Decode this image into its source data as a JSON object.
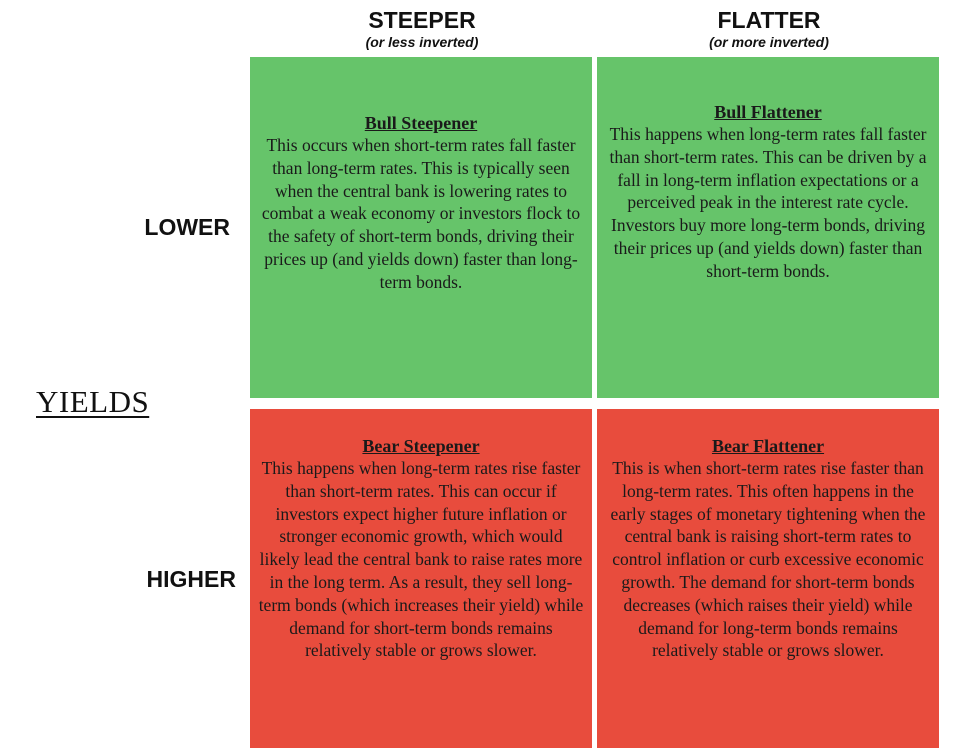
{
  "columns": [
    {
      "title": "STEEPER",
      "subtitle": "(or less inverted)"
    },
    {
      "title": "FLATTER",
      "subtitle": "(or more inverted)"
    }
  ],
  "rows": [
    {
      "label": "LOWER"
    },
    {
      "label": "HIGHER"
    }
  ],
  "axis_label": "YIELDS",
  "cells": {
    "bull_steepener": {
      "title": "Bull Steepener",
      "body": "This occurs when short-term rates fall faster than long-term rates. This is typically seen when the central bank is lowering rates to combat a weak economy or investors flock to the safety of short-term bonds, driving their prices up (and yields down) faster than long-term bonds."
    },
    "bull_flattener": {
      "title": "Bull Flattener",
      "body": "This happens when long-term rates fall faster than short-term rates. This can be driven by a fall in long-term inflation expectations or a perceived peak in the interest rate cycle. Investors buy more long-term bonds, driving their prices up (and yields down) faster than short-term bonds."
    },
    "bear_steepener": {
      "title": "Bear Steepener",
      "body": "This happens when long-term rates rise faster than short-term rates. This can occur if investors expect higher future inflation or stronger economic growth, which would likely lead the central bank to raise rates more in the long term. As a result, they sell long-term bonds (which increases their yield) while demand for short-term bonds remains relatively stable or grows slower."
    },
    "bear_flattener": {
      "title": "Bear Flattener",
      "body": "This is when short-term rates rise faster than long-term rates. This often happens in the early stages of monetary tightening when the central bank is raising short-term rates to control inflation or curb excessive economic growth. The demand for short-term bonds decreases (which raises their yield) while demand for long-term bonds remains relatively stable or grows slower."
    }
  },
  "colors": {
    "bull": "#66c46a",
    "bear": "#e84c3d"
  }
}
